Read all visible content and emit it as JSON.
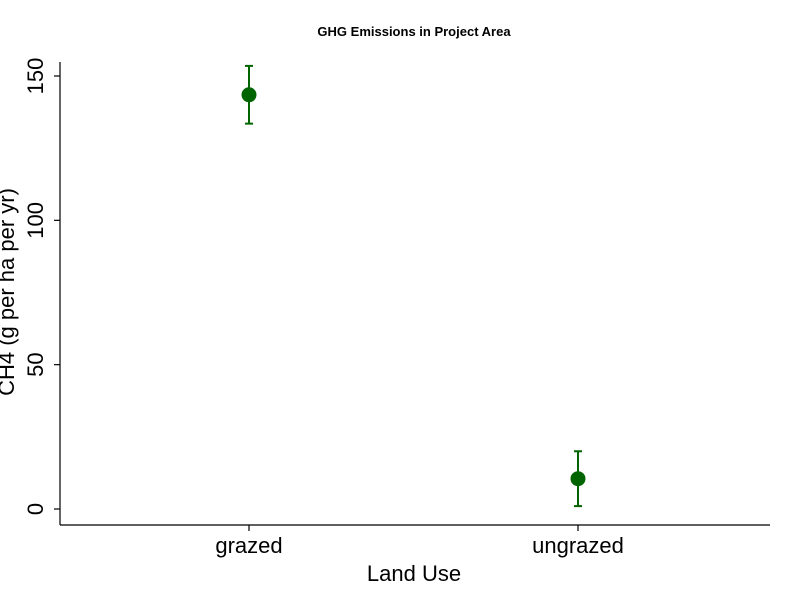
{
  "chart_data": {
    "type": "scatter",
    "title": "GHG Emissions in Project Area",
    "xlabel": "Land Use",
    "ylabel": "CH4 (g per ha per yr)",
    "categories": [
      "grazed",
      "ungrazed"
    ],
    "series": [
      {
        "values": [
          143.5,
          10.5
        ],
        "error_low": [
          133.5,
          1.0
        ],
        "error_high": [
          153.5,
          20.0
        ]
      }
    ],
    "yticks": [
      0,
      50,
      100,
      150
    ],
    "ylim": [
      -5,
      157
    ],
    "grid": false,
    "marker_color": "#006400"
  }
}
